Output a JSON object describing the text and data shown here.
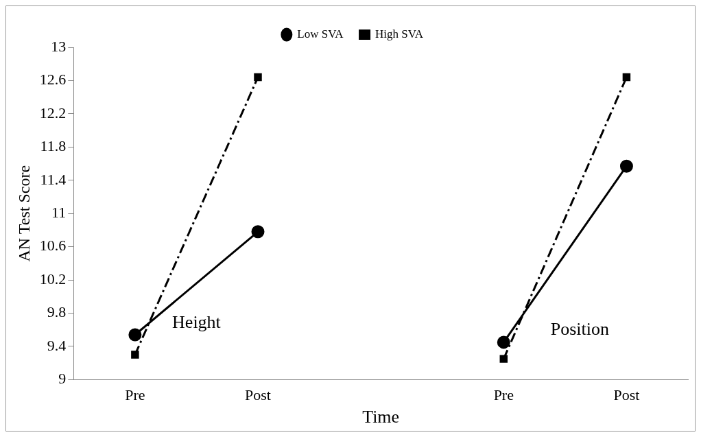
{
  "chart_data": {
    "type": "line",
    "xlabel": "Time",
    "ylabel": "AN Test Score",
    "categories": [
      "Pre",
      "Post",
      null,
      "Pre",
      "Post"
    ],
    "series": [
      {
        "name": "Low SVA",
        "color": "#000000",
        "values": [
          9.54,
          10.78,
          null,
          9.45,
          11.57
        ],
        "marker": "circle",
        "line_style": "solid"
      },
      {
        "name": "High SVA",
        "color": "#000000",
        "values": [
          9.3,
          12.64,
          null,
          9.25,
          12.64
        ],
        "marker": "square",
        "line_style": "dashed"
      }
    ],
    "ylim": [
      9,
      13
    ],
    "yticks": [
      9,
      9.4,
      9.8,
      10.2,
      10.6,
      11,
      11.4,
      11.8,
      12.2,
      12.6,
      13
    ],
    "grid": false,
    "legend": "top",
    "annotations": [
      "Height",
      "Position"
    ]
  }
}
